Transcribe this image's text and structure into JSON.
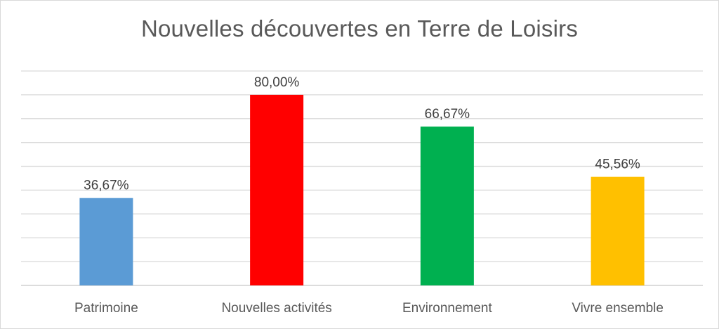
{
  "chart_data": {
    "type": "bar",
    "title": "Nouvelles découvertes en Terre de Loisirs",
    "categories": [
      "Patrimoine",
      "Nouvelles activités",
      "Environnement",
      "Vivre ensemble"
    ],
    "values": [
      36.67,
      80.0,
      66.67,
      45.56
    ],
    "data_labels": [
      "36,67%",
      "80,00%",
      "66,67%",
      "45,56%"
    ],
    "colors": [
      "#5b9bd5",
      "#ff0000",
      "#00b050",
      "#ffc000"
    ],
    "ylim": [
      0,
      90
    ],
    "grid": true,
    "gridline_count": 9,
    "y_axis_visible": false,
    "xlabel": "",
    "ylabel": ""
  }
}
